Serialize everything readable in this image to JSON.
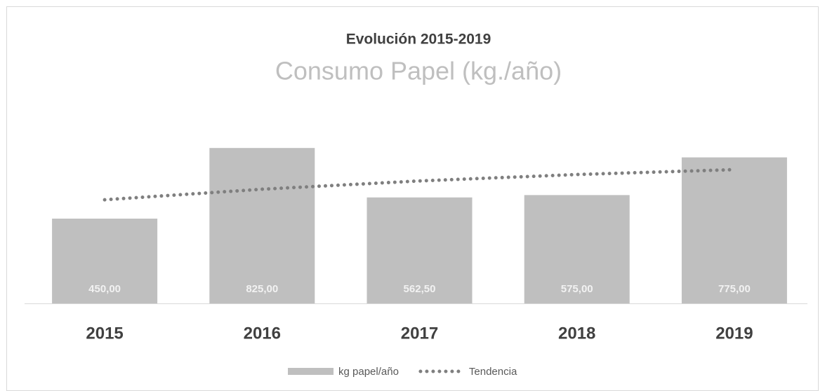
{
  "chart_data": {
    "type": "bar",
    "title": "Evolución 2015-2019",
    "subtitle": "Consumo Papel (kg./año)",
    "categories": [
      "2015",
      "2016",
      "2017",
      "2018",
      "2019"
    ],
    "series": [
      {
        "name": "kg papel/año",
        "type": "bar",
        "color": "#bfbfbf",
        "values": [
          450,
          825,
          562.5,
          575,
          775
        ],
        "value_labels": [
          "450,00",
          "825,00",
          "562,50",
          "575,00",
          "775,00"
        ]
      },
      {
        "name": "Tendencia",
        "type": "line",
        "color": "#7f7f7f",
        "values": [
          550,
          606,
          650,
          684,
          710
        ]
      }
    ],
    "ylim": [
      0,
      900
    ],
    "legend": "bottom"
  }
}
